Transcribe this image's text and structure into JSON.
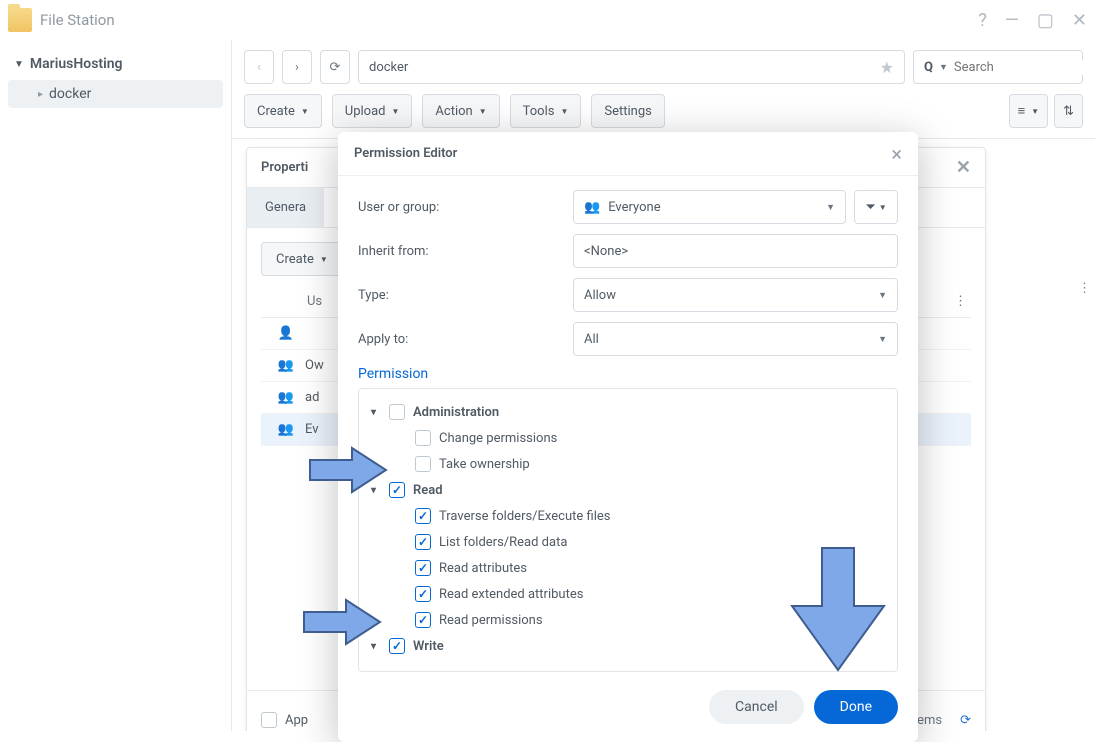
{
  "colors": {
    "accent": "#0668d6",
    "border": "#d5dbe1",
    "text": "#505a64",
    "muted": "#9aa3ac",
    "arrow_fill": "#7fa8e8",
    "arrow_stroke": "#3f5d8f"
  },
  "titlebar": {
    "app_name": "File Station"
  },
  "sidebar": {
    "root": "MariusHosting",
    "children": [
      {
        "label": "docker"
      }
    ]
  },
  "pathbar": {
    "path": "docker",
    "search_placeholder": "Search"
  },
  "toolbar": {
    "create": "Create",
    "upload": "Upload",
    "action": "Action",
    "tools": "Tools",
    "settings": "Settings"
  },
  "properties_panel": {
    "title": "Properti",
    "tab_general": "Genera",
    "create_btn": "Create",
    "col_user": "Us",
    "rows": [
      {
        "icon": "single",
        "label": ""
      },
      {
        "icon": "group",
        "label": "Ow"
      },
      {
        "icon": "group",
        "label": "ad"
      },
      {
        "icon": "group",
        "label": "Ev",
        "selected": true
      }
    ],
    "apply_label": "App",
    "save_label": "e",
    "items_label": "items"
  },
  "modal": {
    "title": "Permission Editor",
    "user_group_label": "User or group:",
    "user_group_value": "Everyone",
    "inherit_label": "Inherit from:",
    "inherit_value": "<None>",
    "type_label": "Type:",
    "type_value": "Allow",
    "apply_label": "Apply to:",
    "apply_value": "All",
    "section": "Permission",
    "groups": [
      {
        "name": "Administration",
        "checked": false,
        "children": [
          {
            "name": "Change permissions",
            "checked": false
          },
          {
            "name": "Take ownership",
            "checked": false
          }
        ]
      },
      {
        "name": "Read",
        "checked": true,
        "children": [
          {
            "name": "Traverse folders/Execute files",
            "checked": true
          },
          {
            "name": "List folders/Read data",
            "checked": true
          },
          {
            "name": "Read attributes",
            "checked": true
          },
          {
            "name": "Read extended attributes",
            "checked": true
          },
          {
            "name": "Read permissions",
            "checked": true
          }
        ]
      },
      {
        "name": "Write",
        "checked": true,
        "children": []
      }
    ],
    "cancel": "Cancel",
    "done": "Done"
  }
}
